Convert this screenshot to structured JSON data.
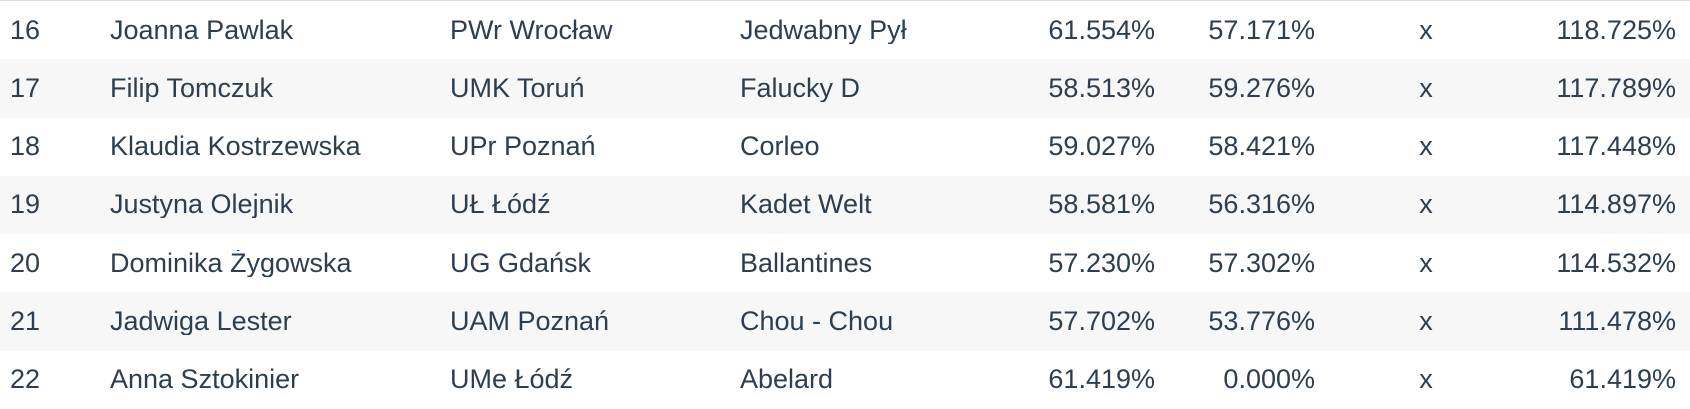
{
  "colors": {
    "text": "#2c3e50",
    "stripe": "#f7f7f7",
    "border": "#dddddd",
    "background": "#ffffff"
  },
  "table": {
    "rows": [
      {
        "rank": "16",
        "rider": "Joanna Pawlak",
        "club": "PWr Wrocław",
        "horse": "Jedwabny Pył",
        "score1": "61.554%",
        "score2": "57.171%",
        "mark": "x",
        "total": "118.725%"
      },
      {
        "rank": "17",
        "rider": "Filip Tomczuk",
        "club": "UMK Toruń",
        "horse": "Falucky D",
        "score1": "58.513%",
        "score2": "59.276%",
        "mark": "x",
        "total": "117.789%"
      },
      {
        "rank": "18",
        "rider": "Klaudia Kostrzewska",
        "club": "UPr Poznań",
        "horse": "Corleo",
        "score1": "59.027%",
        "score2": "58.421%",
        "mark": "x",
        "total": "117.448%"
      },
      {
        "rank": "19",
        "rider": "Justyna Olejnik",
        "club": "UŁ Łódź",
        "horse": "Kadet Welt",
        "score1": "58.581%",
        "score2": "56.316%",
        "mark": "x",
        "total": "114.897%"
      },
      {
        "rank": "20",
        "rider": "Dominika Żygowska",
        "club": "UG Gdańsk",
        "horse": "Ballantines",
        "score1": "57.230%",
        "score2": "57.302%",
        "mark": "x",
        "total": "114.532%"
      },
      {
        "rank": "21",
        "rider": "Jadwiga Lester",
        "club": "UAM Poznań",
        "horse": "Chou - Chou",
        "score1": "57.702%",
        "score2": "53.776%",
        "mark": "x",
        "total": "111.478%"
      },
      {
        "rank": "22",
        "rider": "Anna Sztokinier",
        "club": "UMe Łódź",
        "horse": "Abelard",
        "score1": "61.419%",
        "score2": "0.000%",
        "mark": "x",
        "total": "61.419%"
      }
    ]
  }
}
